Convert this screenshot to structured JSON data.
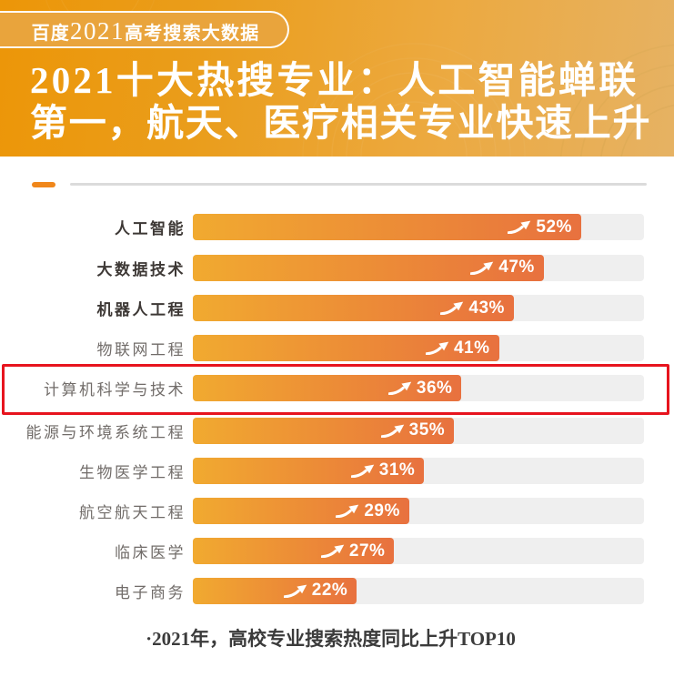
{
  "header": {
    "badge": {
      "prefix": "百度",
      "year": "2021",
      "suffix": "高考搜索大数据"
    },
    "title_line1": "2021十大热搜专业：人工智能蝉联",
    "title_line2": "第一，航天、医疗相关专业快速上升"
  },
  "chart_data": {
    "type": "bar",
    "orientation": "horizontal",
    "title": "2021十大热搜专业：人工智能蝉联第一，航天、医疗相关专业快速上升",
    "categories": [
      "人工智能",
      "大数据技术",
      "机器人工程",
      "物联网工程",
      "计算机科学与技术",
      "能源与环境系统工程",
      "生物医学工程",
      "航空航天工程",
      "临床医学",
      "电子商务"
    ],
    "values": [
      52,
      47,
      43,
      41,
      36,
      35,
      31,
      29,
      27,
      22
    ],
    "value_suffix": "%",
    "xlim": [
      0,
      60
    ],
    "bold_categories": [
      "人工智能",
      "大数据技术",
      "机器人工程"
    ],
    "highlighted_category": "计算机科学与技术",
    "legend": "none",
    "grid": "off",
    "colors": {
      "bar_gradient_start": "#F1AA30",
      "bar_gradient_end": "#E8713F",
      "track": "#EFEFEF",
      "highlight_border": "#E7141E",
      "banner_gradient_start": "#EC9608",
      "banner_gradient_end": "#E6B263"
    }
  },
  "footer": {
    "caption": "·2021年，高校专业搜索热度同比上升TOP10"
  }
}
